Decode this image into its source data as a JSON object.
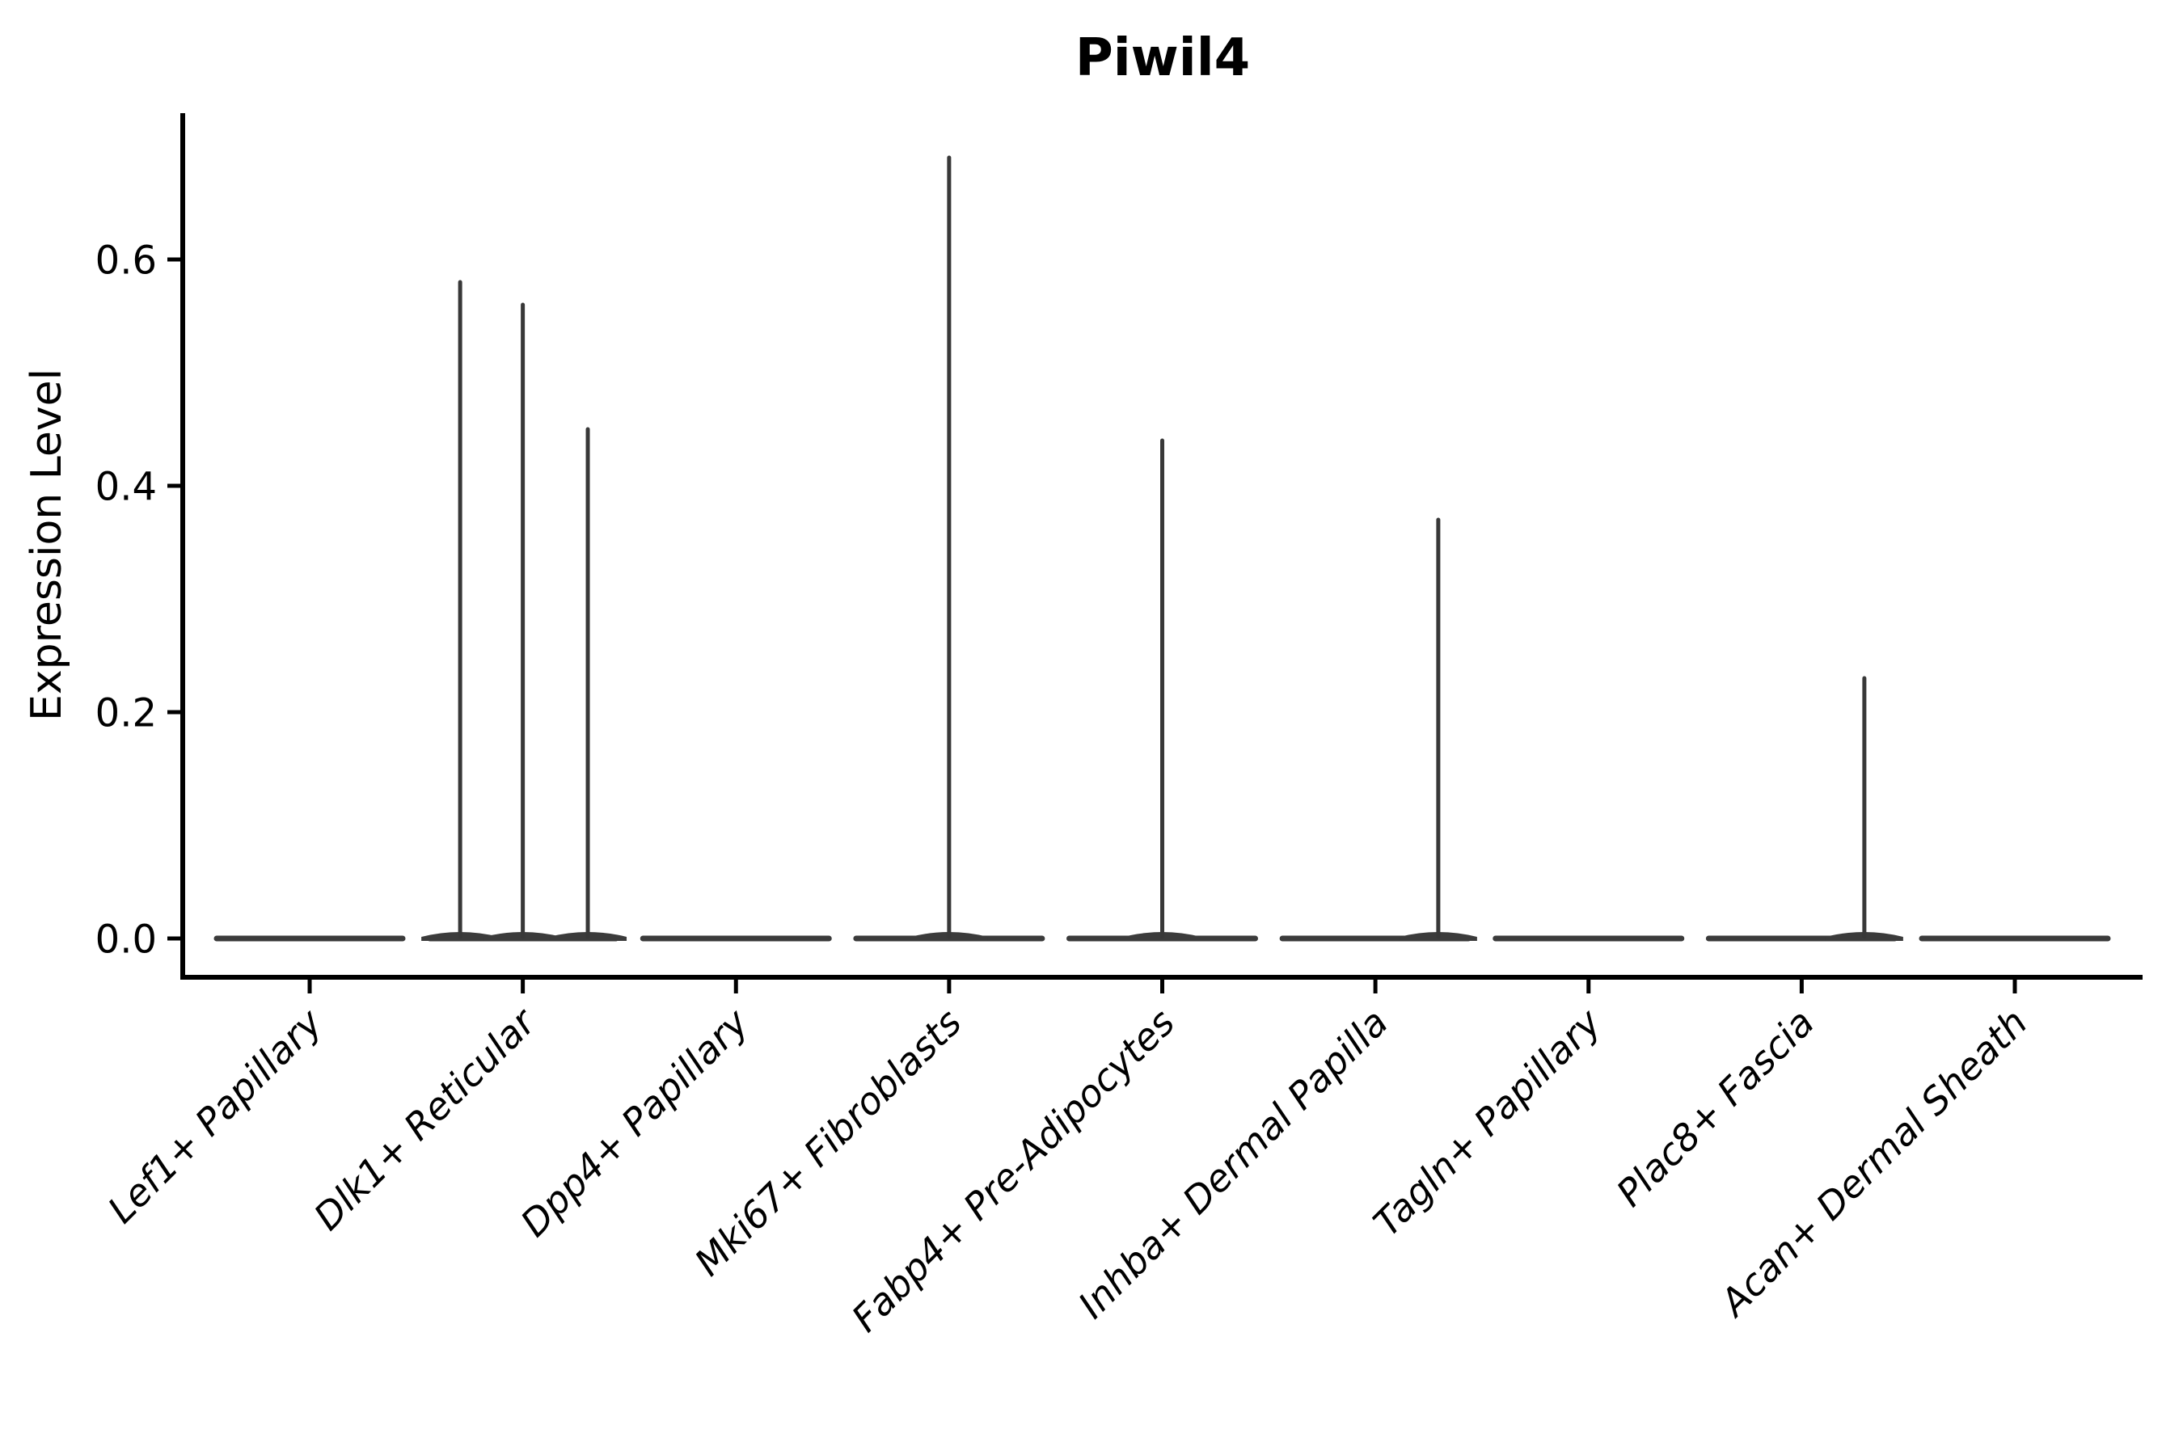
{
  "title": "Piwil4",
  "chart_data": {
    "type": "violin",
    "title": "Piwil4",
    "xlabel": "",
    "ylabel": "Expression Level",
    "ytick_labels": [
      "0.0",
      "0.2",
      "0.4",
      "0.6"
    ],
    "ytick_values": [
      0.0,
      0.2,
      0.4,
      0.6
    ],
    "ylim": [
      -0.036,
      0.729
    ],
    "grid": false,
    "legend": "none",
    "categories": [
      "Lef1+ Papillary",
      "Dlk1+ Reticular",
      "Dpp4+ Papillary",
      "Mki67+ Fibroblasts",
      "Fabp4+ Pre-Adipocytes",
      "Inhba+ Dermal Papilla",
      "Tagln+ Papillary",
      "Plac8+ Fascia",
      "Acan+ Dermal Sheath"
    ],
    "series": [
      {
        "category": "Lef1+ Papillary",
        "baseline_at_zero": true,
        "spikes": []
      },
      {
        "category": "Dlk1+ Reticular",
        "baseline_at_zero": true,
        "spikes": [
          {
            "offset": -0.294,
            "value": 0.58
          },
          {
            "offset": 0.0,
            "value": 0.56
          },
          {
            "offset": 0.305,
            "value": 0.45
          }
        ]
      },
      {
        "category": "Dpp4+ Papillary",
        "baseline_at_zero": true,
        "spikes": []
      },
      {
        "category": "Mki67+ Fibroblasts",
        "baseline_at_zero": true,
        "spikes": [
          {
            "offset": 0.0,
            "value": 0.69
          }
        ]
      },
      {
        "category": "Fabp4+ Pre-Adipocytes",
        "baseline_at_zero": true,
        "spikes": [
          {
            "offset": 0.0,
            "value": 0.44
          }
        ]
      },
      {
        "category": "Inhba+ Dermal Papilla",
        "baseline_at_zero": true,
        "spikes": [
          {
            "offset": 0.295,
            "value": 0.37
          }
        ]
      },
      {
        "category": "Tagln+ Papillary",
        "baseline_at_zero": true,
        "spikes": []
      },
      {
        "category": "Plac8+ Fascia",
        "baseline_at_zero": true,
        "spikes": [
          {
            "offset": 0.294,
            "value": 0.23
          }
        ]
      },
      {
        "category": "Acan+ Dermal Sheath",
        "baseline_at_zero": true,
        "spikes": []
      }
    ],
    "colors": {
      "violin": "#3b3b3b",
      "spike": "#383838",
      "axis": "#000000",
      "text": "#000000",
      "background": "#ffffff"
    }
  }
}
